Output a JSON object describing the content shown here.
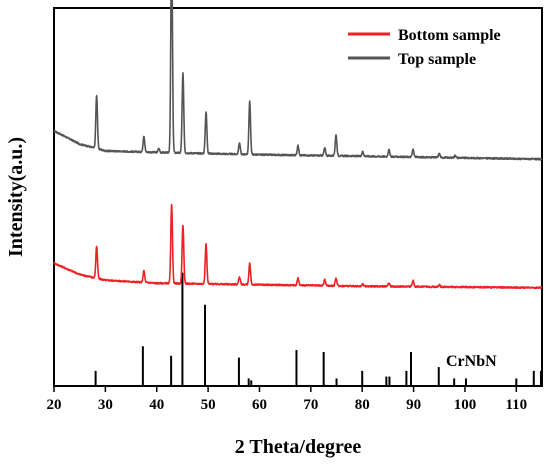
{
  "chart_data": {
    "type": "line",
    "title": "",
    "xlabel": "2 Theta/degree",
    "ylabel": "Intensity(a.u.)",
    "xlim": [
      20,
      115
    ],
    "x_ticks": [
      20,
      30,
      40,
      50,
      60,
      70,
      80,
      90,
      100,
      110
    ],
    "y_ticks_shown": false,
    "legend": {
      "placement": "top-right",
      "entries": [
        {
          "name": "Bottom sample",
          "color": "#ee2222"
        },
        {
          "name": "Top sample",
          "color": "#555555"
        }
      ]
    },
    "series": [
      {
        "name": "Top sample",
        "color": "#555555",
        "baseline": 0.6,
        "background": [
          [
            20,
            0.075
          ],
          [
            25,
            0.04
          ],
          [
            30,
            0.022
          ],
          [
            40,
            0.018
          ],
          [
            60,
            0.012
          ],
          [
            80,
            0.008
          ],
          [
            115,
            0.0
          ]
        ],
        "peaks": [
          [
            28.3,
            0.14
          ],
          [
            37.5,
            0.043
          ],
          [
            40.4,
            0.01
          ],
          [
            42.9,
            0.55
          ],
          [
            45.1,
            0.21
          ],
          [
            49.6,
            0.11
          ],
          [
            56.1,
            0.03
          ],
          [
            58.1,
            0.14
          ],
          [
            67.5,
            0.025
          ],
          [
            72.7,
            0.02
          ],
          [
            74.9,
            0.055
          ],
          [
            80.1,
            0.012
          ],
          [
            85.2,
            0.018
          ],
          [
            89.9,
            0.02
          ],
          [
            95.0,
            0.01
          ],
          [
            98.1,
            0.006
          ]
        ]
      },
      {
        "name": "Bottom sample",
        "color": "#ee2222",
        "baseline": 0.26,
        "background": [
          [
            20,
            0.065
          ],
          [
            25,
            0.035
          ],
          [
            30,
            0.02
          ],
          [
            40,
            0.012
          ],
          [
            60,
            0.008
          ],
          [
            80,
            0.004
          ],
          [
            115,
            0.0
          ]
        ],
        "peaks": [
          [
            28.3,
            0.085
          ],
          [
            37.5,
            0.03
          ],
          [
            42.9,
            0.21
          ],
          [
            45.1,
            0.155
          ],
          [
            49.6,
            0.105
          ],
          [
            56.1,
            0.02
          ],
          [
            58.1,
            0.055
          ],
          [
            67.5,
            0.018
          ],
          [
            72.7,
            0.016
          ],
          [
            74.9,
            0.02
          ],
          [
            80.1,
            0.006
          ],
          [
            85.2,
            0.01
          ],
          [
            89.9,
            0.016
          ],
          [
            95.0,
            0.006
          ]
        ]
      }
    ],
    "reference": {
      "name": "CrNbN",
      "color": "#000000",
      "lines": [
        [
          28.1,
          0.04
        ],
        [
          37.3,
          0.105
        ],
        [
          42.8,
          0.08
        ],
        [
          45.0,
          0.3
        ],
        [
          49.4,
          0.215
        ],
        [
          56.0,
          0.075
        ],
        [
          57.9,
          0.02
        ],
        [
          58.4,
          0.015
        ],
        [
          67.2,
          0.095
        ],
        [
          72.5,
          0.09
        ],
        [
          75.0,
          0.02
        ],
        [
          80.0,
          0.04
        ],
        [
          84.7,
          0.025
        ],
        [
          85.3,
          0.025
        ],
        [
          88.6,
          0.04
        ],
        [
          89.5,
          0.09
        ],
        [
          94.9,
          0.05
        ],
        [
          97.9,
          0.02
        ],
        [
          100.2,
          0.02
        ],
        [
          110.0,
          0.02
        ],
        [
          113.4,
          0.04
        ],
        [
          114.8,
          0.04
        ]
      ]
    }
  }
}
